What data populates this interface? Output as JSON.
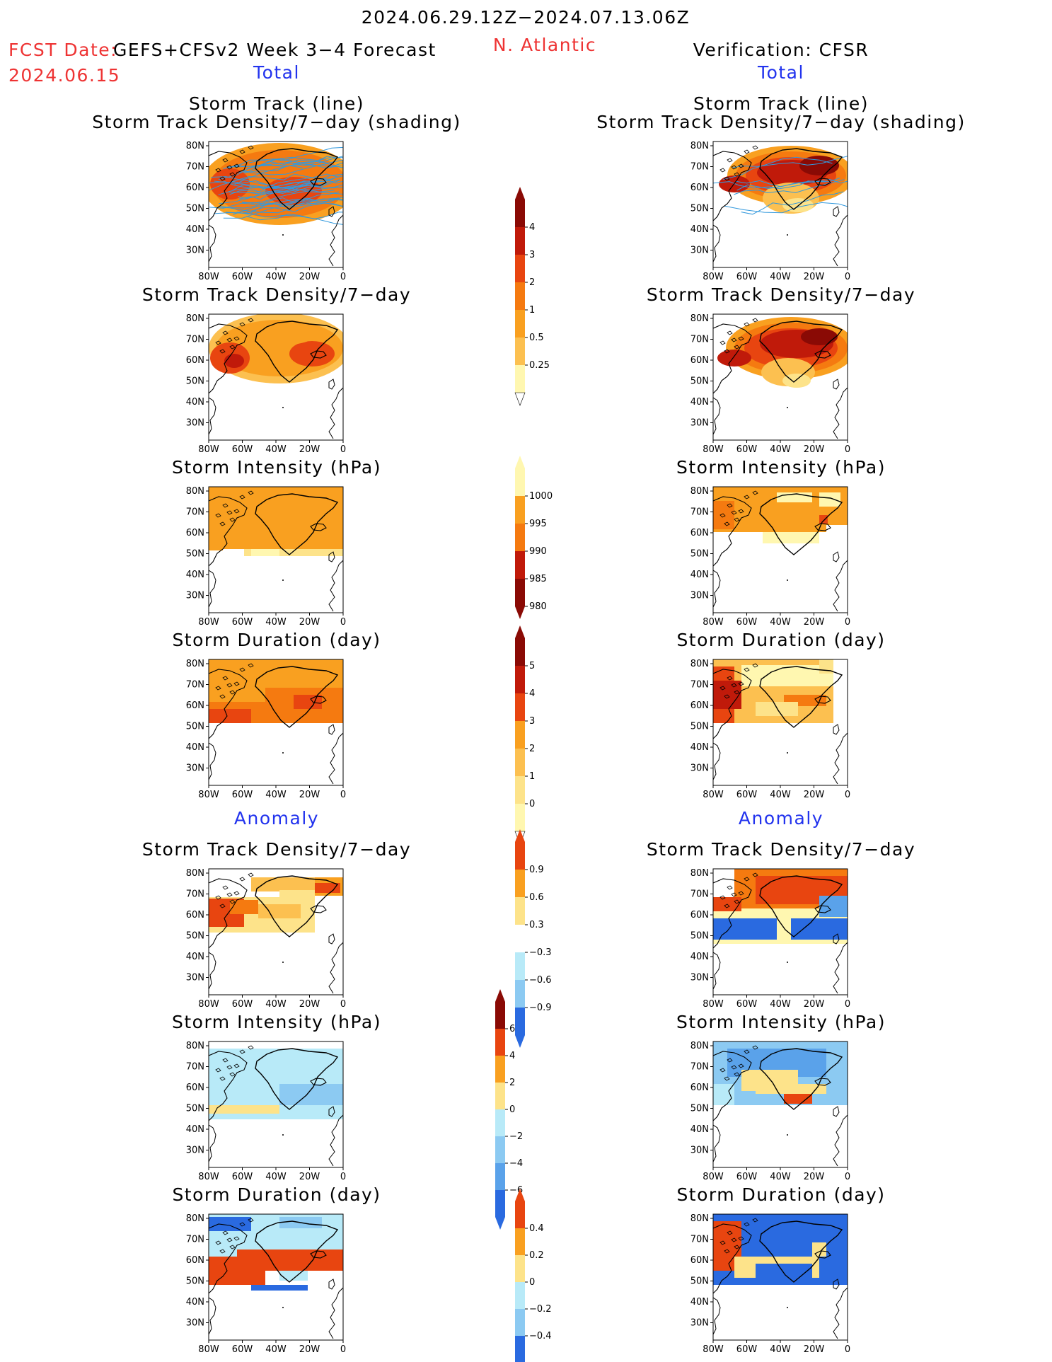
{
  "header": {
    "period": "2024.06.29.12Z−2024.07.13.06Z",
    "fcst_label": "FCST Date:",
    "fcst_model": "GEFS+CFSv2 Week 3−4 Forecast",
    "fcst_date": "2024.06.15",
    "region": "N. Atlantic",
    "verification": "Verification: CFSR"
  },
  "sections": {
    "total": "Total",
    "anomaly": "Anomaly"
  },
  "panel_titles": {
    "track_line": "Storm Track (line)",
    "track_shading": "Storm Track Density/7−day (shading)",
    "density": "Storm Track Density/7−day",
    "intensity": "Storm Intensity (hPa)",
    "duration": "Storm Duration (day)"
  },
  "axes": {
    "lat": [
      "80N",
      "70N",
      "60N",
      "50N",
      "40N",
      "30N"
    ],
    "lon": [
      "80W",
      "60W",
      "40W",
      "20W",
      "0"
    ]
  },
  "colorbars": {
    "density_total": [
      "4",
      "3",
      "2",
      "1",
      "0.5",
      "0.25"
    ],
    "intensity_total": [
      "1000",
      "995",
      "990",
      "985",
      "980"
    ],
    "duration_total": [
      "5",
      "4",
      "3",
      "2",
      "1",
      "0"
    ],
    "density_anom": [
      "0.9",
      "0.6",
      "0.3",
      "−0.3",
      "−0.6",
      "−0.9"
    ],
    "intensity_anom": [
      "6",
      "4",
      "2",
      "0",
      "−2",
      "−4",
      "−6"
    ],
    "duration_anom": [
      "0.4",
      "0.2",
      "0",
      "−0.2",
      "−0.4"
    ]
  },
  "colors": {
    "title_red": "#ee3333",
    "section_blue": "#2233ee",
    "track_line": "#3399dd",
    "warm": [
      "#fff7b0",
      "#fde38a",
      "#fcc050",
      "#f9a020",
      "#f57a10",
      "#e84510",
      "#c01a0a",
      "#8a0a05"
    ],
    "cool": [
      "#b8eaf8",
      "#8ccaf2",
      "#5aa2ea",
      "#2a6ae0",
      "#1748c8"
    ]
  }
}
